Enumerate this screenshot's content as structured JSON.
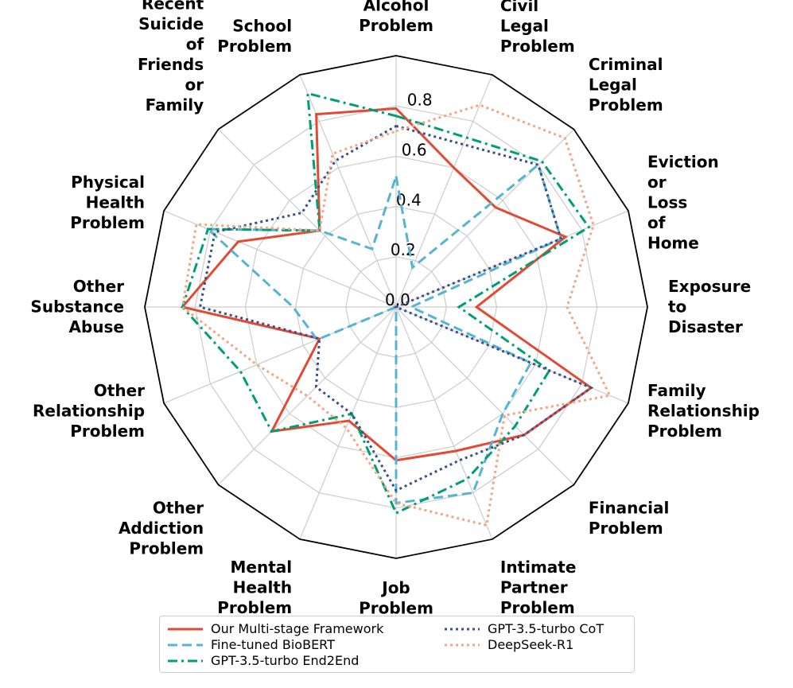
{
  "chart_data": {
    "type": "radar",
    "categories": [
      "Alcohol Problem",
      "Civil Legal Problem",
      "Criminal Legal Problem",
      "Eviction or Loss of Home",
      "Exposure to Disaster",
      "Family Relationship Problem",
      "Financial Problem",
      "Intimate Partner Problem",
      "Job Problem",
      "Mental Health Problem",
      "Other Addiction Problem",
      "Other Relationship Problem",
      "Other Substance Abuse",
      "Physical Health Problem",
      "Recent Suicide of Friends or Family",
      "School Problem"
    ],
    "category_lines": [
      [
        "Alcohol",
        "Problem"
      ],
      [
        "Civil",
        "Legal",
        "Problem"
      ],
      [
        "Criminal",
        "Legal",
        "Problem"
      ],
      [
        "Eviction",
        "or",
        "Loss",
        "of",
        "Home"
      ],
      [
        "Exposure",
        "to",
        "Disaster"
      ],
      [
        "Family",
        "Relationship",
        "Problem"
      ],
      [
        "Financial",
        "Problem"
      ],
      [
        "Intimate",
        "Partner",
        "Problem"
      ],
      [
        "Job",
        "Problem"
      ],
      [
        "Mental",
        "Health",
        "Problem"
      ],
      [
        "Other",
        "Addiction",
        "Problem"
      ],
      [
        "Other",
        "Relationship",
        "Problem"
      ],
      [
        "Other",
        "Substance",
        "Abuse"
      ],
      [
        "Physical",
        "Health",
        "Problem"
      ],
      [
        "Recent",
        "Suicide",
        "of",
        "Friends",
        "or",
        "Family"
      ],
      [
        "School",
        "Problem"
      ]
    ],
    "rlim": [
      0,
      1
    ],
    "rticks": [
      0.0,
      0.2,
      0.4,
      0.6,
      0.8
    ],
    "rtick_labels": [
      "0.0",
      "0.2",
      "0.4",
      "0.6",
      "0.8"
    ],
    "grid": true,
    "series": [
      {
        "name": "Our Multi-stage Framework",
        "color": "#e24a33",
        "dash": "solid",
        "values": [
          0.79,
          0.6,
          0.56,
          0.73,
          0.32,
          0.84,
          0.72,
          0.62,
          0.61,
          0.49,
          0.7,
          0.33,
          0.85,
          0.68,
          0.43,
          0.83
        ]
      },
      {
        "name": "Fine-tuned BioBERT",
        "color": "#56b4d3",
        "dash": "dashed",
        "values": [
          0.52,
          0.17,
          0.8,
          0.71,
          0.06,
          0.58,
          0.6,
          0.8,
          0.78,
          0.0,
          0.0,
          0.34,
          0.41,
          0.81,
          0.43,
          0.25
        ]
      },
      {
        "name": "GPT-3.5-turbo End2End",
        "color": "#009e73",
        "dash": "dashdot",
        "values": [
          0.76,
          0.73,
          0.82,
          0.83,
          0.25,
          0.66,
          0.67,
          0.74,
          0.82,
          0.46,
          0.7,
          0.67,
          0.85,
          0.81,
          0.43,
          0.92
        ]
      },
      {
        "name": "GPT-3.5-turbo CoT",
        "color": "#3a4f8c",
        "dash": "dotted",
        "values": [
          0.72,
          0.7,
          0.8,
          0.71,
          0.0,
          0.84,
          0.72,
          0.66,
          0.73,
          0.46,
          0.45,
          0.33,
          0.78,
          0.78,
          0.53,
          0.63
        ]
      },
      {
        "name": "DeepSeek-R1",
        "color": "#f4a582",
        "dash": "dotted",
        "values": [
          0.7,
          0.87,
          0.95,
          0.85,
          0.68,
          0.92,
          0.61,
          0.94,
          0.78,
          0.52,
          0.5,
          0.6,
          0.85,
          0.86,
          0.43,
          0.66
        ]
      }
    ],
    "legend_position": "bottom-center"
  }
}
